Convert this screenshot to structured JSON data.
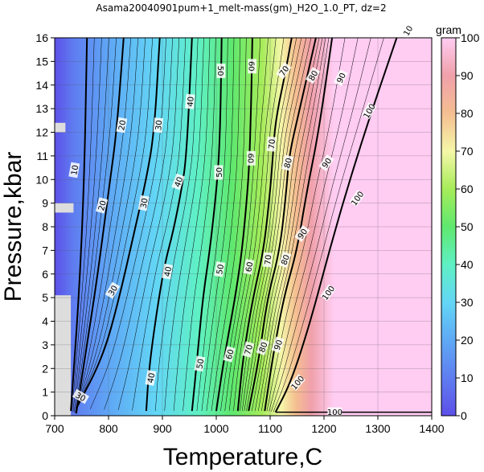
{
  "chart_data": {
    "type": "contour",
    "title": "Asama20040901pum+1_melt-mass(gm)_H2O_1.0_PT, dz=2",
    "xlabel": "Temperature,C",
    "ylabel": "Pressure,kbar",
    "xlim": [
      700,
      1400
    ],
    "ylim": [
      0,
      16
    ],
    "x_ticks": [
      "700",
      "800",
      "900",
      "1000",
      "1100",
      "1200",
      "1300",
      "1400"
    ],
    "y_ticks": [
      "0",
      "1",
      "2",
      "3",
      "4",
      "5",
      "6",
      "7",
      "8",
      "9",
      "10",
      "11",
      "12",
      "13",
      "14",
      "15",
      "16"
    ],
    "grid": true,
    "colorbar": {
      "label": "gram",
      "range": [
        0,
        100
      ],
      "ticks": [
        "0",
        "10",
        "20",
        "30",
        "40",
        "50",
        "60",
        "70",
        "80",
        "90",
        "100"
      ]
    },
    "contour_interval": 2,
    "major_contours": [
      {
        "level": 10,
        "points": [
          [
            730,
            0.2
          ],
          [
            745,
            5
          ],
          [
            755,
            10
          ],
          [
            760,
            16
          ]
        ]
      },
      {
        "level": 20,
        "points": [
          [
            740,
            0.1
          ],
          [
            760,
            3
          ],
          [
            780,
            6
          ],
          [
            800,
            9.5
          ],
          [
            815,
            12
          ],
          [
            828,
            16
          ]
        ]
      },
      {
        "level": 30,
        "points": [
          [
            740,
            0.3
          ],
          [
            790,
            2.5
          ],
          [
            820,
            5
          ],
          [
            845,
            7.5
          ],
          [
            870,
            10
          ],
          [
            885,
            12
          ],
          [
            895,
            16
          ]
        ]
      },
      {
        "level": 40,
        "points": [
          [
            870,
            0.2
          ],
          [
            875,
            2
          ],
          [
            890,
            4.5
          ],
          [
            905,
            6.5
          ],
          [
            920,
            7.8
          ],
          [
            935,
            9.5
          ],
          [
            945,
            11
          ],
          [
            955,
            16
          ]
        ]
      },
      {
        "level": 50,
        "points": [
          [
            955,
            0.2
          ],
          [
            965,
            2.5
          ],
          [
            975,
            5
          ],
          [
            988,
            7
          ],
          [
            1000,
            9.5
          ],
          [
            1005,
            11
          ],
          [
            1008,
            13
          ],
          [
            1010,
            16
          ]
        ]
      },
      {
        "level": 60,
        "points": [
          [
            1000,
            0.2
          ],
          [
            1015,
            2.5
          ],
          [
            1035,
            5
          ],
          [
            1048,
            7
          ],
          [
            1058,
            9.5
          ],
          [
            1062,
            11
          ],
          [
            1065,
            13.5
          ],
          [
            1067,
            16
          ]
        ]
      },
      {
        "level": 70,
        "points": [
          [
            1040,
            0.2
          ],
          [
            1050,
            2.5
          ],
          [
            1068,
            5
          ],
          [
            1088,
            7
          ],
          [
            1100,
            9.5
          ],
          [
            1105,
            11
          ],
          [
            1110,
            12.5
          ],
          [
            1128,
            14.5
          ],
          [
            1140,
            16
          ]
        ]
      },
      {
        "level": 80,
        "points": [
          [
            1060,
            0.2
          ],
          [
            1080,
            2.5
          ],
          [
            1095,
            5
          ],
          [
            1118,
            7
          ],
          [
            1130,
            9.5
          ],
          [
            1135,
            11
          ],
          [
            1155,
            13
          ],
          [
            1185,
            16
          ]
        ]
      },
      {
        "level": 90,
        "points": [
          [
            1090,
            0.2
          ],
          [
            1105,
            2.5
          ],
          [
            1125,
            5
          ],
          [
            1150,
            7
          ],
          [
            1168,
            9.5
          ],
          [
            1190,
            12
          ],
          [
            1215,
            16
          ]
        ]
      },
      {
        "level": 100,
        "points": [
          [
            1110,
            0.15
          ],
          [
            1140,
            1.5
          ],
          [
            1175,
            4
          ],
          [
            1210,
            7
          ],
          [
            1248,
            10
          ],
          [
            1290,
            13
          ],
          [
            1335,
            16
          ]
        ]
      }
    ],
    "contour_labels": [
      {
        "text": "10",
        "x": 737,
        "y": 10.4,
        "angle": -80
      },
      {
        "text": "20",
        "x": 825,
        "y": 12.3,
        "angle": -80
      },
      {
        "text": "20",
        "x": 788,
        "y": 8.9,
        "angle": -75
      },
      {
        "text": "30",
        "x": 893,
        "y": 12.3,
        "angle": -85
      },
      {
        "text": "30",
        "x": 866,
        "y": 9.0,
        "angle": -80
      },
      {
        "text": "30",
        "x": 808,
        "y": 5.3,
        "angle": -60
      },
      {
        "text": "30",
        "x": 748,
        "y": 0.8,
        "angle": 30
      },
      {
        "text": "40",
        "x": 952,
        "y": 13.3,
        "angle": -85
      },
      {
        "text": "40",
        "x": 930,
        "y": 9.9,
        "angle": -70
      },
      {
        "text": "40",
        "x": 910,
        "y": 6.1,
        "angle": -80
      },
      {
        "text": "40",
        "x": 879,
        "y": 1.6,
        "angle": -80
      },
      {
        "text": "50",
        "x": 1008,
        "y": 14.6,
        "angle": 90
      },
      {
        "text": "50",
        "x": 1005,
        "y": 10.3,
        "angle": -90
      },
      {
        "text": "50",
        "x": 1007,
        "y": 6.2,
        "angle": -80
      },
      {
        "text": "50",
        "x": 970,
        "y": 2.2,
        "angle": -80
      },
      {
        "text": "60",
        "x": 1066,
        "y": 14.8,
        "angle": 90
      },
      {
        "text": "60",
        "x": 1064,
        "y": 10.9,
        "angle": 90
      },
      {
        "text": "60",
        "x": 1061,
        "y": 6.3,
        "angle": -80
      },
      {
        "text": "60",
        "x": 1025,
        "y": 2.6,
        "angle": -75
      },
      {
        "text": "70",
        "x": 1126,
        "y": 14.6,
        "angle": -55
      },
      {
        "text": "70",
        "x": 1103,
        "y": 11.5,
        "angle": -85
      },
      {
        "text": "70",
        "x": 1096,
        "y": 6.6,
        "angle": -85
      },
      {
        "text": "70",
        "x": 1060,
        "y": 2.8,
        "angle": -75
      },
      {
        "text": "80",
        "x": 1180,
        "y": 14.4,
        "angle": -60
      },
      {
        "text": "80",
        "x": 1133,
        "y": 10.7,
        "angle": -75
      },
      {
        "text": "80",
        "x": 1128,
        "y": 6.6,
        "angle": -70
      },
      {
        "text": "80",
        "x": 1087,
        "y": 2.9,
        "angle": -70
      },
      {
        "text": "90",
        "x": 1232,
        "y": 14.3,
        "angle": -65
      },
      {
        "text": "90",
        "x": 1205,
        "y": 10.7,
        "angle": -55
      },
      {
        "text": "90",
        "x": 1160,
        "y": 7.7,
        "angle": -55
      },
      {
        "text": "90",
        "x": 1115,
        "y": 3.0,
        "angle": -70
      },
      {
        "text": "10",
        "x": 1356,
        "y": 16.3,
        "angle": -60
      },
      {
        "text": "100",
        "x": 1284,
        "y": 12.9,
        "angle": -60
      },
      {
        "text": "100",
        "x": 1262,
        "y": 9.2,
        "angle": -55
      },
      {
        "text": "100",
        "x": 1208,
        "y": 5.2,
        "angle": -55
      },
      {
        "text": "100",
        "x": 1151,
        "y": 1.4,
        "angle": -50
      },
      {
        "text": "100",
        "x": 1220,
        "y": 0.15,
        "angle": 0
      }
    ],
    "no_data_regions": [
      {
        "x": [
          700,
          730
        ],
        "y": [
          0,
          5.1
        ]
      },
      {
        "x": [
          700,
          735
        ],
        "y": [
          8.6,
          9.0
        ]
      },
      {
        "x": [
          700,
          720
        ],
        "y": [
          12.0,
          12.4
        ]
      }
    ],
    "colors": {
      "c0": "#5c4fe8",
      "c10": "#5f7df0",
      "c20": "#5fa9f5",
      "c30": "#63d6f5",
      "c40": "#5ff0c4",
      "c50": "#5fe86f",
      "c60": "#a6ec5a",
      "c70": "#f5f7a8",
      "c80": "#f5be91",
      "c90": "#f0a0aa",
      "c100": "#ffccf2"
    }
  }
}
